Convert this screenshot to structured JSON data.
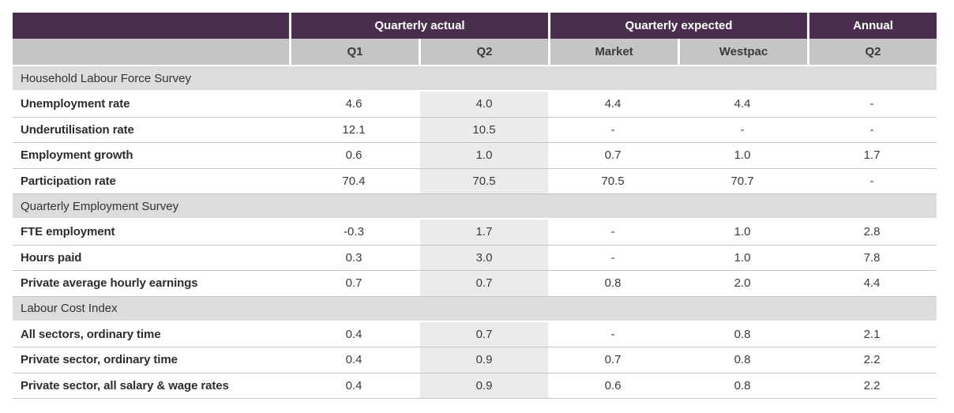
{
  "table": {
    "header_groups": [
      {
        "label": "Quarterly actual",
        "span": 2
      },
      {
        "label": "Quarterly expected",
        "span": 2
      },
      {
        "label": "Annual",
        "span": 1
      }
    ],
    "subheaders": [
      "",
      "Q1",
      "Q2",
      "Market",
      "Westpac",
      "Q2"
    ],
    "sections": [
      {
        "title": "Household Labour Force Survey",
        "rows": [
          {
            "label": "Unemployment rate",
            "values": [
              "4.6",
              "4.0",
              "4.4",
              "4.4",
              "-"
            ]
          },
          {
            "label": "Underutilisation rate",
            "values": [
              "12.1",
              "10.5",
              "-",
              "-",
              "-"
            ]
          },
          {
            "label": "Employment growth",
            "values": [
              "0.6",
              "1.0",
              "0.7",
              "1.0",
              "1.7"
            ]
          },
          {
            "label": "Participation rate",
            "values": [
              "70.4",
              "70.5",
              "70.5",
              "70.7",
              "-"
            ]
          }
        ]
      },
      {
        "title": "Quarterly Employment Survey",
        "rows": [
          {
            "label": "FTE employment",
            "values": [
              "-0.3",
              "1.7",
              "-",
              "1.0",
              "2.8"
            ]
          },
          {
            "label": "Hours paid",
            "values": [
              "0.3",
              "3.0",
              "-",
              "1.0",
              "7.8"
            ]
          },
          {
            "label": "Private average hourly earnings",
            "values": [
              "0.7",
              "0.7",
              "0.8",
              "2.0",
              "4.4"
            ]
          }
        ]
      },
      {
        "title": "Labour Cost Index",
        "rows": [
          {
            "label": "All sectors, ordinary time",
            "values": [
              "0.4",
              "0.7",
              "-",
              "0.8",
              "2.1"
            ]
          },
          {
            "label": "Private sector, ordinary time",
            "values": [
              "0.4",
              "0.9",
              "0.7",
              "0.8",
              "2.2"
            ]
          },
          {
            "label": "Private sector, all salary & wage rates",
            "values": [
              "0.4",
              "0.9",
              "0.6",
              "0.8",
              "2.2"
            ]
          }
        ]
      }
    ],
    "colors": {
      "header_purple": "#4a2e4e",
      "subheader_grey": "#c5c5c7",
      "section_grey": "#dcdcde",
      "q2_column_shade": "#ebebed",
      "row_divider": "#c6c6c6",
      "header_text": "#ffffff",
      "body_text": "#3a3a3a"
    }
  }
}
